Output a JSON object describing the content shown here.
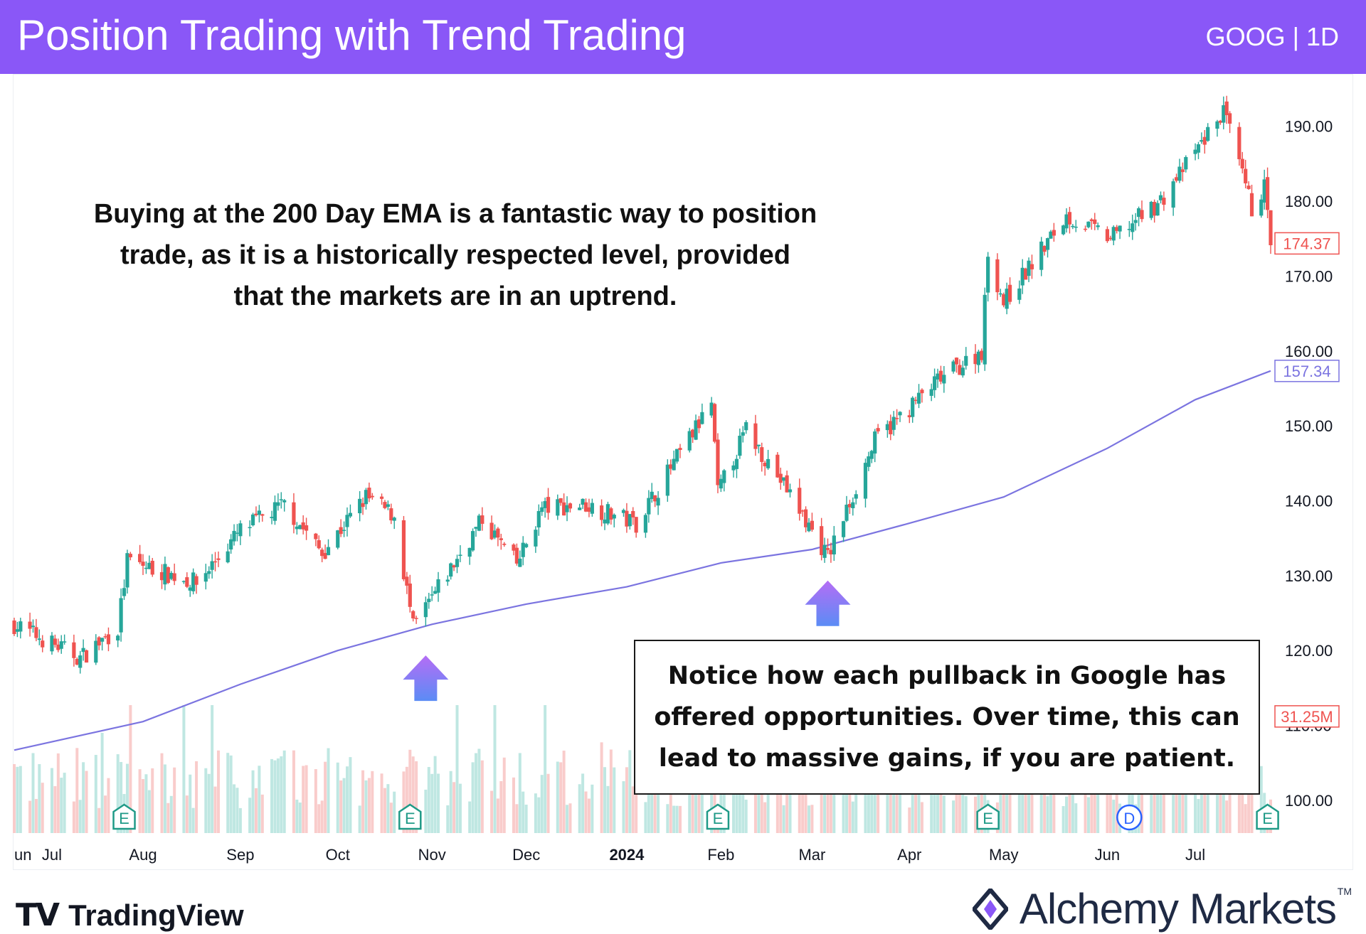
{
  "header": {
    "title": "Position Trading with Trend Trading",
    "ticker": "GOOG | 1D",
    "bg_color": "#8a57f7"
  },
  "annotations": {
    "top_note": "Buying at the 200 Day EMA is a fantastic way to position trade, as it is a historically respected level, provided that the markets are in an uptrend.",
    "box_note": "Notice how each pullback in Google has offered opportunities. Over time, this can lead to massive gains, if you are patient."
  },
  "branding": {
    "tradingview": "TradingView",
    "alchemy": "Alchemy Markets",
    "alchemy_tm": "TM"
  },
  "chart_data": {
    "type": "candlestick",
    "ticker": "GOOG",
    "interval": "1D",
    "ylim": [
      96,
      197
    ],
    "yticks": [
      100,
      110,
      120,
      130,
      140,
      150,
      160,
      170,
      180,
      190
    ],
    "ytick_labels": [
      "100.00",
      "110.00",
      "120.00",
      "130.00",
      "140.00",
      "150.00",
      "160.00",
      "170.00",
      "180.00",
      "190.00"
    ],
    "x_range": [
      "2023-06-21",
      "2024-07-25"
    ],
    "x_ticks": [
      {
        "label": "un",
        "date": "2023-06-19"
      },
      {
        "label": "Jul",
        "date": "2023-07-03"
      },
      {
        "label": "Aug",
        "date": "2023-08-01"
      },
      {
        "label": "Sep",
        "date": "2023-09-01"
      },
      {
        "label": "Oct",
        "date": "2023-10-02"
      },
      {
        "label": "Nov",
        "date": "2023-11-01"
      },
      {
        "label": "Dec",
        "date": "2023-12-01"
      },
      {
        "label": "2024",
        "date": "2024-01-02"
      },
      {
        "label": "Feb",
        "date": "2024-02-01"
      },
      {
        "label": "Mar",
        "date": "2024-03-01"
      },
      {
        "label": "Apr",
        "date": "2024-04-01"
      },
      {
        "label": "May",
        "date": "2024-05-01"
      },
      {
        "label": "Jun",
        "date": "2024-06-03"
      },
      {
        "label": "Jul",
        "date": "2024-07-01"
      }
    ],
    "price_path": [
      {
        "date": "2023-06-21",
        "close": 123.5
      },
      {
        "date": "2023-07-12",
        "close": 119
      },
      {
        "date": "2023-07-24",
        "close": 123
      },
      {
        "date": "2023-07-27",
        "close": 132
      },
      {
        "date": "2023-08-18",
        "close": 129
      },
      {
        "date": "2023-09-01",
        "close": 136
      },
      {
        "date": "2023-09-15",
        "close": 139.5
      },
      {
        "date": "2023-09-27",
        "close": 133
      },
      {
        "date": "2023-10-11",
        "close": 140.5
      },
      {
        "date": "2023-10-20",
        "close": 138
      },
      {
        "date": "2023-10-26",
        "close": 123
      },
      {
        "date": "2023-11-17",
        "close": 137.5
      },
      {
        "date": "2023-11-28",
        "close": 131.5
      },
      {
        "date": "2023-12-06",
        "close": 139
      },
      {
        "date": "2023-12-20",
        "close": 139.5
      },
      {
        "date": "2024-01-05",
        "close": 137
      },
      {
        "date": "2024-01-29",
        "close": 153
      },
      {
        "date": "2024-01-31",
        "close": 141
      },
      {
        "date": "2024-02-09",
        "close": 149.5
      },
      {
        "date": "2024-02-22",
        "close": 141.5
      },
      {
        "date": "2024-03-06",
        "close": 132.5
      },
      {
        "date": "2024-03-21",
        "close": 148
      },
      {
        "date": "2024-04-10",
        "close": 156
      },
      {
        "date": "2024-04-24",
        "close": 160
      },
      {
        "date": "2024-04-26",
        "close": 173
      },
      {
        "date": "2024-05-01",
        "close": 166.5
      },
      {
        "date": "2024-05-21",
        "close": 178
      },
      {
        "date": "2024-06-04",
        "close": 175
      },
      {
        "date": "2024-06-20",
        "close": 180
      },
      {
        "date": "2024-07-10",
        "close": 192
      },
      {
        "date": "2024-07-19",
        "close": 179
      },
      {
        "date": "2024-07-23",
        "close": 182
      },
      {
        "date": "2024-07-25",
        "close": 174.37
      }
    ],
    "ema200_path": [
      {
        "date": "2023-06-21",
        "value": 106.7
      },
      {
        "date": "2023-08-01",
        "value": 110.5
      },
      {
        "date": "2023-09-01",
        "value": 115.5
      },
      {
        "date": "2023-10-02",
        "value": 120
      },
      {
        "date": "2023-11-01",
        "value": 123.5
      },
      {
        "date": "2023-12-01",
        "value": 126.2
      },
      {
        "date": "2024-01-02",
        "value": 128.5
      },
      {
        "date": "2024-02-01",
        "value": 131.7
      },
      {
        "date": "2024-03-01",
        "value": 133.5
      },
      {
        "date": "2024-04-01",
        "value": 137
      },
      {
        "date": "2024-05-01",
        "value": 140.5
      },
      {
        "date": "2024-06-03",
        "value": 147
      },
      {
        "date": "2024-07-01",
        "value": 153.5
      },
      {
        "date": "2024-07-25",
        "value": 157.34
      }
    ],
    "last_price_label": "174.37",
    "ema_label": "157.34",
    "volume_label": "31.25M",
    "events": [
      {
        "type": "E",
        "date": "2023-07-26"
      },
      {
        "type": "E",
        "date": "2023-10-25"
      },
      {
        "type": "E",
        "date": "2024-01-31"
      },
      {
        "type": "E",
        "date": "2024-04-26"
      },
      {
        "type": "D",
        "date": "2024-06-10"
      },
      {
        "type": "E",
        "date": "2024-07-24"
      }
    ],
    "arrows": [
      {
        "date": "2023-10-30",
        "price": 122
      },
      {
        "date": "2024-03-06",
        "price": 132
      }
    ],
    "colors": {
      "up": "#26a69a",
      "down": "#ef5350",
      "ema": "#7b74e0",
      "up_volume": "#bfe7e2",
      "down_volume": "#f9cccb",
      "event": "#1f9a87",
      "dividend": "#2962ff",
      "arrow_top": "#b56df5",
      "arrow_bottom": "#5b8cf5"
    }
  }
}
